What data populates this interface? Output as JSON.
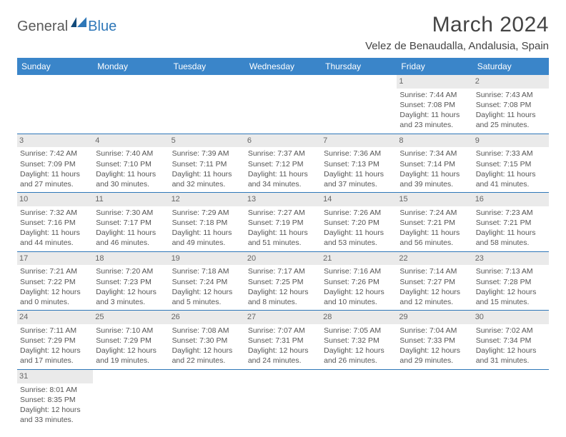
{
  "logo": {
    "part1": "General",
    "part2": "Blue"
  },
  "title": "March 2024",
  "location": "Velez de Benaudalla, Andalusia, Spain",
  "colors": {
    "header_bg": "#3a85c9",
    "header_text": "#ffffff",
    "cell_border": "#2e77b8",
    "daynum_bg": "#eaeaea",
    "logo_blue": "#2e77b8",
    "logo_gray": "#5a5a5a"
  },
  "day_headers": [
    "Sunday",
    "Monday",
    "Tuesday",
    "Wednesday",
    "Thursday",
    "Friday",
    "Saturday"
  ],
  "weeks": [
    [
      null,
      null,
      null,
      null,
      null,
      {
        "n": "1",
        "sr": "Sunrise: 7:44 AM",
        "ss": "Sunset: 7:08 PM",
        "dl": "Daylight: 11 hours and 23 minutes."
      },
      {
        "n": "2",
        "sr": "Sunrise: 7:43 AM",
        "ss": "Sunset: 7:08 PM",
        "dl": "Daylight: 11 hours and 25 minutes."
      }
    ],
    [
      {
        "n": "3",
        "sr": "Sunrise: 7:42 AM",
        "ss": "Sunset: 7:09 PM",
        "dl": "Daylight: 11 hours and 27 minutes."
      },
      {
        "n": "4",
        "sr": "Sunrise: 7:40 AM",
        "ss": "Sunset: 7:10 PM",
        "dl": "Daylight: 11 hours and 30 minutes."
      },
      {
        "n": "5",
        "sr": "Sunrise: 7:39 AM",
        "ss": "Sunset: 7:11 PM",
        "dl": "Daylight: 11 hours and 32 minutes."
      },
      {
        "n": "6",
        "sr": "Sunrise: 7:37 AM",
        "ss": "Sunset: 7:12 PM",
        "dl": "Daylight: 11 hours and 34 minutes."
      },
      {
        "n": "7",
        "sr": "Sunrise: 7:36 AM",
        "ss": "Sunset: 7:13 PM",
        "dl": "Daylight: 11 hours and 37 minutes."
      },
      {
        "n": "8",
        "sr": "Sunrise: 7:34 AM",
        "ss": "Sunset: 7:14 PM",
        "dl": "Daylight: 11 hours and 39 minutes."
      },
      {
        "n": "9",
        "sr": "Sunrise: 7:33 AM",
        "ss": "Sunset: 7:15 PM",
        "dl": "Daylight: 11 hours and 41 minutes."
      }
    ],
    [
      {
        "n": "10",
        "sr": "Sunrise: 7:32 AM",
        "ss": "Sunset: 7:16 PM",
        "dl": "Daylight: 11 hours and 44 minutes."
      },
      {
        "n": "11",
        "sr": "Sunrise: 7:30 AM",
        "ss": "Sunset: 7:17 PM",
        "dl": "Daylight: 11 hours and 46 minutes."
      },
      {
        "n": "12",
        "sr": "Sunrise: 7:29 AM",
        "ss": "Sunset: 7:18 PM",
        "dl": "Daylight: 11 hours and 49 minutes."
      },
      {
        "n": "13",
        "sr": "Sunrise: 7:27 AM",
        "ss": "Sunset: 7:19 PM",
        "dl": "Daylight: 11 hours and 51 minutes."
      },
      {
        "n": "14",
        "sr": "Sunrise: 7:26 AM",
        "ss": "Sunset: 7:20 PM",
        "dl": "Daylight: 11 hours and 53 minutes."
      },
      {
        "n": "15",
        "sr": "Sunrise: 7:24 AM",
        "ss": "Sunset: 7:21 PM",
        "dl": "Daylight: 11 hours and 56 minutes."
      },
      {
        "n": "16",
        "sr": "Sunrise: 7:23 AM",
        "ss": "Sunset: 7:21 PM",
        "dl": "Daylight: 11 hours and 58 minutes."
      }
    ],
    [
      {
        "n": "17",
        "sr": "Sunrise: 7:21 AM",
        "ss": "Sunset: 7:22 PM",
        "dl": "Daylight: 12 hours and 0 minutes."
      },
      {
        "n": "18",
        "sr": "Sunrise: 7:20 AM",
        "ss": "Sunset: 7:23 PM",
        "dl": "Daylight: 12 hours and 3 minutes."
      },
      {
        "n": "19",
        "sr": "Sunrise: 7:18 AM",
        "ss": "Sunset: 7:24 PM",
        "dl": "Daylight: 12 hours and 5 minutes."
      },
      {
        "n": "20",
        "sr": "Sunrise: 7:17 AM",
        "ss": "Sunset: 7:25 PM",
        "dl": "Daylight: 12 hours and 8 minutes."
      },
      {
        "n": "21",
        "sr": "Sunrise: 7:16 AM",
        "ss": "Sunset: 7:26 PM",
        "dl": "Daylight: 12 hours and 10 minutes."
      },
      {
        "n": "22",
        "sr": "Sunrise: 7:14 AM",
        "ss": "Sunset: 7:27 PM",
        "dl": "Daylight: 12 hours and 12 minutes."
      },
      {
        "n": "23",
        "sr": "Sunrise: 7:13 AM",
        "ss": "Sunset: 7:28 PM",
        "dl": "Daylight: 12 hours and 15 minutes."
      }
    ],
    [
      {
        "n": "24",
        "sr": "Sunrise: 7:11 AM",
        "ss": "Sunset: 7:29 PM",
        "dl": "Daylight: 12 hours and 17 minutes."
      },
      {
        "n": "25",
        "sr": "Sunrise: 7:10 AM",
        "ss": "Sunset: 7:29 PM",
        "dl": "Daylight: 12 hours and 19 minutes."
      },
      {
        "n": "26",
        "sr": "Sunrise: 7:08 AM",
        "ss": "Sunset: 7:30 PM",
        "dl": "Daylight: 12 hours and 22 minutes."
      },
      {
        "n": "27",
        "sr": "Sunrise: 7:07 AM",
        "ss": "Sunset: 7:31 PM",
        "dl": "Daylight: 12 hours and 24 minutes."
      },
      {
        "n": "28",
        "sr": "Sunrise: 7:05 AM",
        "ss": "Sunset: 7:32 PM",
        "dl": "Daylight: 12 hours and 26 minutes."
      },
      {
        "n": "29",
        "sr": "Sunrise: 7:04 AM",
        "ss": "Sunset: 7:33 PM",
        "dl": "Daylight: 12 hours and 29 minutes."
      },
      {
        "n": "30",
        "sr": "Sunrise: 7:02 AM",
        "ss": "Sunset: 7:34 PM",
        "dl": "Daylight: 12 hours and 31 minutes."
      }
    ],
    [
      {
        "n": "31",
        "sr": "Sunrise: 8:01 AM",
        "ss": "Sunset: 8:35 PM",
        "dl": "Daylight: 12 hours and 33 minutes."
      },
      null,
      null,
      null,
      null,
      null,
      null
    ]
  ]
}
